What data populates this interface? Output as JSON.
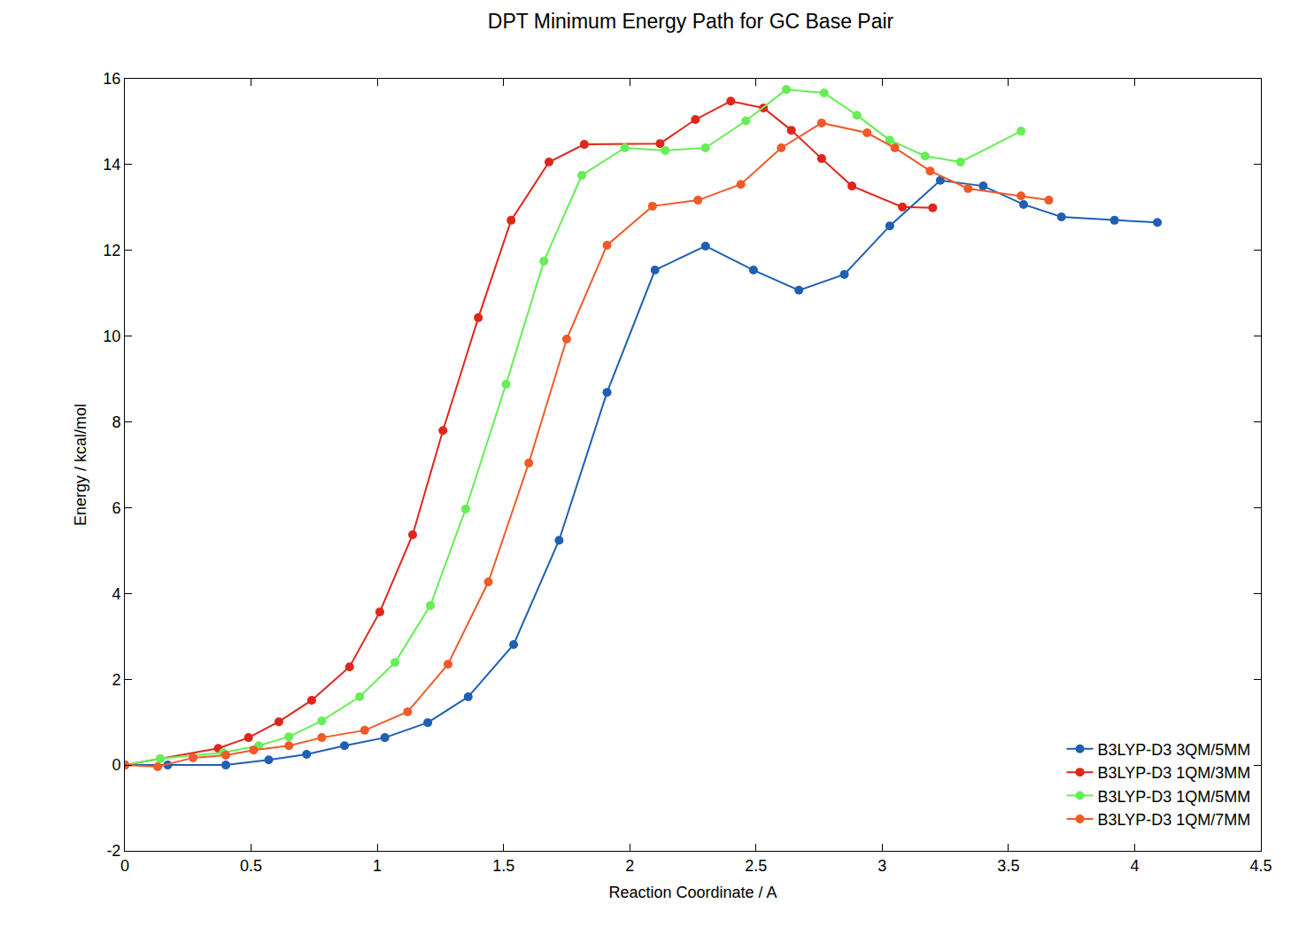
{
  "chart_data": {
    "type": "line",
    "title": "DPT Minimum Energy Path for GC Base Pair",
    "x_label": "Reaction Coordinate / A",
    "y_label": "Energy / kcal/mol",
    "xlim": [
      0,
      4.5
    ],
    "xticks": [
      0,
      0.5,
      1,
      1.5,
      2,
      2.5,
      3,
      3.5,
      4,
      4.5
    ],
    "ylim": [
      -2,
      16
    ],
    "yticks": [
      -2,
      0,
      2,
      4,
      6,
      8,
      10,
      12,
      14,
      16
    ],
    "grid": false,
    "legend": "lower right",
    "marker": "circle",
    "series": [
      {
        "name": "B3LYP-D3 3QM/5MM",
        "color": "#1f5fb4",
        "x": [
          0,
          0.17,
          0.4,
          0.57,
          0.72,
          0.87,
          1.03,
          1.2,
          1.36,
          1.54,
          1.72,
          1.91,
          2.1,
          2.3,
          2.49,
          2.67,
          2.85,
          3.03,
          3.23,
          3.4,
          3.56,
          3.71,
          3.92,
          4.09
        ],
        "values": [
          0,
          0,
          0,
          0.12,
          0.25,
          0.45,
          0.64,
          0.99,
          1.59,
          2.81,
          5.24,
          8.69,
          11.54,
          12.1,
          11.54,
          11.07,
          11.44,
          12.57,
          13.63,
          13.5,
          13.07,
          12.78,
          12.7,
          12.65
        ]
      },
      {
        "name": "B3LYP-D3 1QM/3MM",
        "color": "#e0261b",
        "x": [
          0,
          0.37,
          0.49,
          0.61,
          0.74,
          0.89,
          1.01,
          1.14,
          1.26,
          1.4,
          1.53,
          1.68,
          1.82,
          2.12,
          2.26,
          2.4,
          2.53,
          2.64,
          2.76,
          2.88,
          3.08,
          3.2
        ],
        "values": [
          0,
          0.39,
          0.64,
          1.01,
          1.51,
          2.29,
          3.57,
          5.37,
          7.8,
          10.43,
          12.7,
          14.06,
          14.47,
          14.49,
          15.05,
          15.48,
          15.32,
          14.8,
          14.14,
          13.5,
          13.01,
          12.99
        ]
      },
      {
        "name": "B3LYP-D3 1QM/5MM",
        "color": "#66ee55",
        "x": [
          0,
          0.14,
          0.39,
          0.53,
          0.65,
          0.78,
          0.93,
          1.07,
          1.21,
          1.35,
          1.51,
          1.66,
          1.81,
          1.98,
          2.14,
          2.3,
          2.46,
          2.62,
          2.77,
          2.9,
          3.03,
          3.17,
          3.31,
          3.55
        ],
        "values": [
          0,
          0.15,
          0.29,
          0.45,
          0.66,
          1.03,
          1.59,
          2.39,
          3.72,
          5.97,
          8.88,
          11.75,
          13.75,
          14.39,
          14.33,
          14.39,
          15.02,
          15.75,
          15.67,
          15.15,
          14.57,
          14.2,
          14.06,
          14.78
        ]
      },
      {
        "name": "B3LYP-D3 1QM/7MM",
        "color": "#f05a28",
        "x": [
          0,
          0.13,
          0.27,
          0.4,
          0.51,
          0.65,
          0.78,
          0.95,
          1.12,
          1.28,
          1.44,
          1.6,
          1.75,
          1.91,
          2.09,
          2.27,
          2.44,
          2.6,
          2.76,
          2.94,
          3.05,
          3.19,
          3.34,
          3.55,
          3.66
        ],
        "values": [
          0,
          -0.04,
          0.17,
          0.23,
          0.35,
          0.45,
          0.64,
          0.81,
          1.24,
          2.35,
          4.27,
          7.04,
          9.93,
          12.12,
          13.03,
          13.17,
          13.54,
          14.39,
          14.97,
          14.74,
          14.39,
          13.85,
          13.44,
          13.27,
          13.17
        ]
      }
    ]
  }
}
